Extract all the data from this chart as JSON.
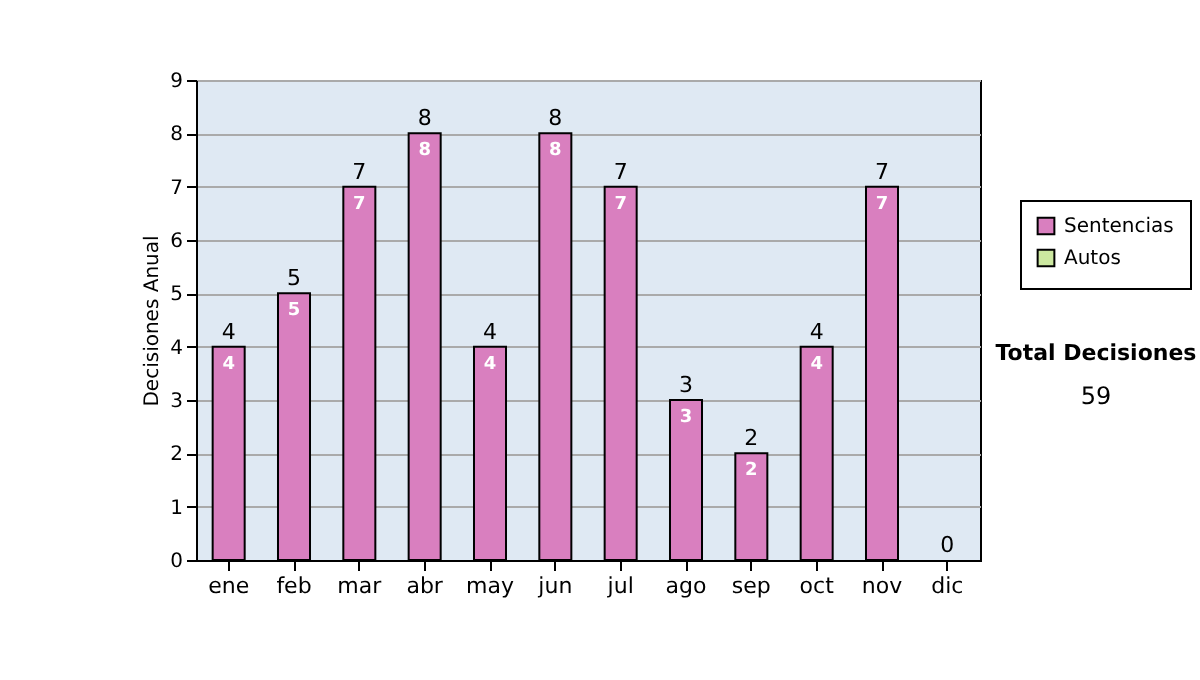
{
  "chart_data": {
    "type": "bar",
    "ylabel": "Decisiones Anual",
    "categories": [
      "ene",
      "feb",
      "mar",
      "abr",
      "may",
      "jun",
      "jul",
      "ago",
      "sep",
      "oct",
      "nov",
      "dic"
    ],
    "series": [
      {
        "name": "Sentencias",
        "color": "#d97fbf",
        "values": [
          4,
          5,
          7,
          8,
          4,
          8,
          7,
          3,
          2,
          4,
          7,
          0
        ],
        "value_labels": [
          "4",
          "5",
          "7",
          "8",
          "4",
          "8",
          "7",
          "3",
          "2",
          "4",
          "7",
          null
        ]
      },
      {
        "name": "Autos",
        "color": "#cce8a0",
        "values": [
          0,
          0,
          0,
          0,
          0,
          0,
          0,
          0,
          0,
          0,
          0,
          0
        ]
      }
    ],
    "stacked": true,
    "totals": [
      "4",
      "5",
      "7",
      "8",
      "4",
      "8",
      "7",
      "3",
      "2",
      "4",
      "7",
      "0"
    ],
    "ylim": [
      0,
      9
    ],
    "yticks": [
      0,
      1,
      2,
      3,
      4,
      5,
      6,
      7,
      8,
      9
    ],
    "grid": "y",
    "legend": "right",
    "annotations": [
      "Total Decisiones",
      "59"
    ]
  }
}
